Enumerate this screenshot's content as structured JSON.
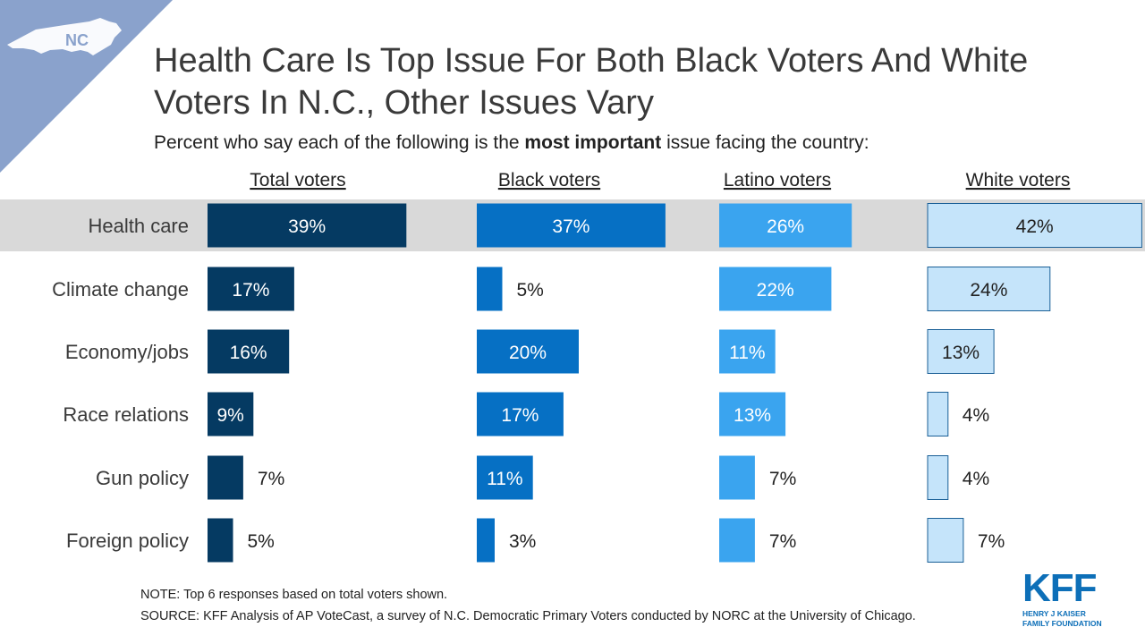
{
  "badge": {
    "state": "NC"
  },
  "header": {
    "title": "Health Care Is Top Issue For Both Black Voters And White Voters In N.C., Other Issues Vary",
    "subtitle_pre": "Percent who say each of the following is the ",
    "subtitle_bold": "most important",
    "subtitle_post": " issue facing the country:"
  },
  "colors": {
    "total": "#053a62",
    "black": "#0670c4",
    "latino": "#3aa4ef",
    "white": "#c5e4fa",
    "highlight_row": "#d9d9d9",
    "badge": "#8aa2cc"
  },
  "chart_data": {
    "type": "bar",
    "orientation": "horizontal",
    "categories": [
      "Health care",
      "Climate change",
      "Economy/jobs",
      "Race relations",
      "Gun policy",
      "Foreign policy"
    ],
    "series": [
      {
        "name": "Total voters",
        "values": [
          39,
          17,
          16,
          9,
          7,
          5
        ],
        "labels": [
          "39%",
          "17%",
          "16%",
          "9%",
          "7%",
          "5%"
        ]
      },
      {
        "name": "Black voters",
        "values": [
          37,
          5,
          20,
          17,
          11,
          3
        ],
        "labels": [
          "37%",
          "5%",
          "20%",
          "17%",
          "11%",
          "3%"
        ]
      },
      {
        "name": "Latino voters",
        "values": [
          26,
          22,
          11,
          13,
          7,
          7
        ],
        "labels": [
          "26%",
          "22%",
          "11%",
          "13%",
          "7%",
          "7%"
        ]
      },
      {
        "name": "White voters",
        "values": [
          42,
          24,
          13,
          4,
          4,
          7
        ],
        "labels": [
          "42%",
          "24%",
          "13%",
          "4%",
          "4%",
          "7%"
        ]
      }
    ],
    "highlighted_category": "Health care",
    "legend": "panel headers above each column"
  },
  "footer": {
    "note": "NOTE: Top 6 responses based on total voters shown.",
    "source": "SOURCE: KFF Analysis of AP VoteCast, a survey of N.C. Democratic Primary Voters conducted by NORC at the University of Chicago."
  },
  "logo": {
    "letters": "KFF",
    "line1": "HENRY J KAISER",
    "line2": "FAMILY FOUNDATION"
  }
}
